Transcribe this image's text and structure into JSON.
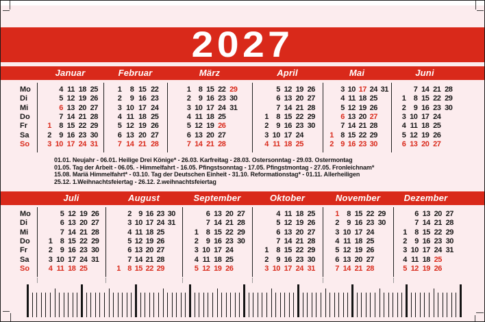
{
  "card": {
    "year": "2027",
    "weekdays": [
      "Mo",
      "Di",
      "Mi",
      "Do",
      "Fr",
      "Sa",
      "So"
    ]
  },
  "colors": {
    "red": "#d9291a",
    "pink": "#fcecee",
    "text_black": "#141414",
    "band_text_white": "#ffffff"
  },
  "top_months": [
    {
      "name": "Januar",
      "cols": 5,
      "red_dates": [
        "1",
        "6"
      ],
      "rows": [
        [
          "",
          "4",
          "11",
          "18",
          "25"
        ],
        [
          "",
          "5",
          "12",
          "19",
          "26"
        ],
        [
          "",
          "6",
          "13",
          "20",
          "27"
        ],
        [
          "",
          "7",
          "14",
          "21",
          "28"
        ],
        [
          "1",
          "8",
          "15",
          "22",
          "29"
        ],
        [
          "2",
          "9",
          "16",
          "23",
          "30"
        ],
        [
          "3",
          "10",
          "17",
          "24",
          "31"
        ]
      ]
    },
    {
      "name": "Februar",
      "cols": 4,
      "red_dates": [],
      "rows": [
        [
          "1",
          "8",
          "15",
          "22"
        ],
        [
          "2",
          "9",
          "16",
          "23"
        ],
        [
          "3",
          "10",
          "17",
          "24"
        ],
        [
          "4",
          "11",
          "18",
          "25"
        ],
        [
          "5",
          "12",
          "19",
          "26"
        ],
        [
          "6",
          "13",
          "20",
          "27"
        ],
        [
          "7",
          "14",
          "21",
          "28"
        ]
      ]
    },
    {
      "name": "März",
      "cols": 5,
      "red_dates": [
        "26",
        "29"
      ],
      "rows": [
        [
          "1",
          "8",
          "15",
          "22",
          "29"
        ],
        [
          "2",
          "9",
          "16",
          "23",
          "30"
        ],
        [
          "3",
          "10",
          "17",
          "24",
          "31"
        ],
        [
          "4",
          "11",
          "18",
          "25",
          ""
        ],
        [
          "5",
          "12",
          "19",
          "26",
          ""
        ],
        [
          "6",
          "13",
          "20",
          "27",
          ""
        ],
        [
          "7",
          "14",
          "21",
          "28",
          ""
        ]
      ]
    },
    {
      "name": "April",
      "cols": 5,
      "red_dates": [],
      "rows": [
        [
          "",
          "5",
          "12",
          "19",
          "26"
        ],
        [
          "",
          "6",
          "13",
          "20",
          "27"
        ],
        [
          "",
          "7",
          "14",
          "21",
          "28"
        ],
        [
          "1",
          "8",
          "15",
          "22",
          "29"
        ],
        [
          "2",
          "9",
          "16",
          "23",
          "30"
        ],
        [
          "3",
          "10",
          "17",
          "24",
          ""
        ],
        [
          "4",
          "11",
          "18",
          "25",
          ""
        ]
      ]
    },
    {
      "name": "Mai",
      "cols": 6,
      "red_dates": [
        "1",
        "6",
        "17",
        "27"
      ],
      "rows": [
        [
          "",
          "3",
          "10",
          "17",
          "24",
          "31"
        ],
        [
          "",
          "4",
          "11",
          "18",
          "25",
          ""
        ],
        [
          "",
          "5",
          "12",
          "19",
          "26",
          ""
        ],
        [
          "",
          "6",
          "13",
          "20",
          "27",
          ""
        ],
        [
          "",
          "7",
          "14",
          "21",
          "28",
          ""
        ],
        [
          "1",
          "8",
          "15",
          "22",
          "29",
          ""
        ],
        [
          "2",
          "9",
          "16",
          "23",
          "30",
          ""
        ]
      ]
    },
    {
      "name": "Juni",
      "cols": 5,
      "red_dates": [],
      "rows": [
        [
          "",
          "7",
          "14",
          "21",
          "28"
        ],
        [
          "1",
          "8",
          "15",
          "22",
          "29"
        ],
        [
          "2",
          "9",
          "16",
          "23",
          "30"
        ],
        [
          "3",
          "10",
          "17",
          "24",
          ""
        ],
        [
          "4",
          "11",
          "18",
          "25",
          ""
        ],
        [
          "5",
          "12",
          "19",
          "26",
          ""
        ],
        [
          "6",
          "13",
          "20",
          "27",
          ""
        ]
      ]
    }
  ],
  "bottom_months": [
    {
      "name": "Juli",
      "cols": 5,
      "red_dates": [],
      "rows": [
        [
          "",
          "5",
          "12",
          "19",
          "26"
        ],
        [
          "",
          "6",
          "13",
          "20",
          "27"
        ],
        [
          "",
          "7",
          "14",
          "21",
          "28"
        ],
        [
          "1",
          "8",
          "15",
          "22",
          "29"
        ],
        [
          "2",
          "9",
          "16",
          "23",
          "30"
        ],
        [
          "3",
          "10",
          "17",
          "24",
          "31"
        ],
        [
          "4",
          "11",
          "18",
          "25",
          ""
        ]
      ]
    },
    {
      "name": "August",
      "cols": 6,
      "red_dates": [],
      "rows": [
        [
          "",
          "2",
          "9",
          "16",
          "23",
          "30"
        ],
        [
          "",
          "3",
          "10",
          "17",
          "24",
          "31"
        ],
        [
          "",
          "4",
          "11",
          "18",
          "25",
          ""
        ],
        [
          "",
          "5",
          "12",
          "19",
          "26",
          ""
        ],
        [
          "",
          "6",
          "13",
          "20",
          "27",
          ""
        ],
        [
          "",
          "7",
          "14",
          "21",
          "28",
          ""
        ],
        [
          "1",
          "8",
          "15",
          "22",
          "29",
          ""
        ]
      ]
    },
    {
      "name": "September",
      "cols": 5,
      "red_dates": [],
      "rows": [
        [
          "",
          "6",
          "13",
          "20",
          "27"
        ],
        [
          "",
          "7",
          "14",
          "21",
          "28"
        ],
        [
          "1",
          "8",
          "15",
          "22",
          "29"
        ],
        [
          "2",
          "9",
          "16",
          "23",
          "30"
        ],
        [
          "3",
          "10",
          "17",
          "24",
          ""
        ],
        [
          "4",
          "11",
          "18",
          "25",
          ""
        ],
        [
          "5",
          "12",
          "19",
          "26",
          ""
        ]
      ]
    },
    {
      "name": "Oktober",
      "cols": 5,
      "red_dates": [],
      "rows": [
        [
          "",
          "4",
          "11",
          "18",
          "25"
        ],
        [
          "",
          "5",
          "12",
          "19",
          "26"
        ],
        [
          "",
          "6",
          "13",
          "20",
          "27"
        ],
        [
          "",
          "7",
          "14",
          "21",
          "28"
        ],
        [
          "1",
          "8",
          "15",
          "22",
          "29"
        ],
        [
          "2",
          "9",
          "16",
          "23",
          "30"
        ],
        [
          "3",
          "10",
          "17",
          "24",
          "31"
        ]
      ]
    },
    {
      "name": "November",
      "cols": 5,
      "red_dates": [
        "1"
      ],
      "rows": [
        [
          "1",
          "8",
          "15",
          "22",
          "29"
        ],
        [
          "2",
          "9",
          "16",
          "23",
          "30"
        ],
        [
          "3",
          "10",
          "17",
          "24",
          ""
        ],
        [
          "4",
          "11",
          "18",
          "25",
          ""
        ],
        [
          "5",
          "12",
          "19",
          "26",
          ""
        ],
        [
          "6",
          "13",
          "20",
          "27",
          ""
        ],
        [
          "7",
          "14",
          "21",
          "28",
          ""
        ]
      ]
    },
    {
      "name": "Dezember",
      "cols": 5,
      "red_dates": [
        "25",
        "26"
      ],
      "rows": [
        [
          "",
          "6",
          "13",
          "20",
          "27"
        ],
        [
          "",
          "7",
          "14",
          "21",
          "28"
        ],
        [
          "1",
          "8",
          "15",
          "22",
          "29"
        ],
        [
          "2",
          "9",
          "16",
          "23",
          "30"
        ],
        [
          "3",
          "10",
          "17",
          "24",
          "31"
        ],
        [
          "4",
          "11",
          "18",
          "25",
          ""
        ],
        [
          "5",
          "12",
          "19",
          "26",
          ""
        ]
      ]
    }
  ],
  "holidays": [
    "01.01. Neujahr - 06.01. Heilige Drei Könige* - 26.03. Karfreitag - 28.03. Ostersonntag - 29.03. Ostermontag",
    "01.05. Tag der Arbeit - 06.05. - Himmelfahrt - 16.05. Pfingstsonntag - 17.05. Pfingstmontag - 27.05. Fronleichnam*",
    "15.08. Mariä Himmelfahrt* - 03.10. Tag der Deutschen Einheit - 31.10. Reformationstag* - 01.11. Allerheiligen",
    "25.12. 1.Weihnachtsfeiertag - 26.12. 2.weihnachtsfeiertag"
  ]
}
